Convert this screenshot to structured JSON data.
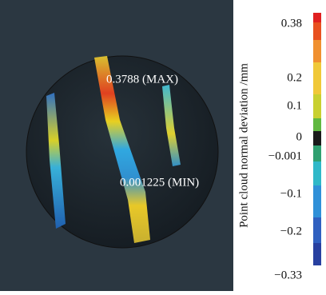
{
  "annotations": [
    "0.3788 (MAX)",
    "0.001225 (MIN)"
  ],
  "colorbar": {
    "label": "Point cloud normal deviation /mm",
    "ticks": [
      "0.38",
      "0.2",
      "0.1",
      "0",
      "−0.001",
      "−0.1",
      "−0.2",
      "−0.33"
    ]
  }
}
